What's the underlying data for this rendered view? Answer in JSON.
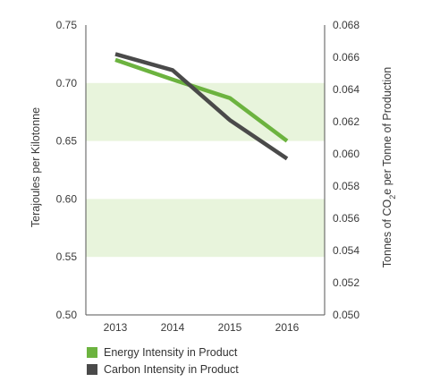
{
  "chart_data": {
    "type": "line",
    "x": [
      "2013",
      "2014",
      "2015",
      "2016"
    ],
    "series": [
      {
        "name": "Energy Intensity in Product",
        "axis": "left",
        "values": [
          0.72,
          0.703,
          0.687,
          0.65
        ],
        "color": "#6cb33f"
      },
      {
        "name": "Carbon Intensity in Product",
        "axis": "right",
        "values": [
          0.0662,
          0.0652,
          0.0621,
          0.0597
        ],
        "color": "#4a4a4a"
      }
    ],
    "ylabel": "Terajoules per Kilotonne",
    "ylim": [
      0.5,
      0.75
    ],
    "yticks": [
      "0.50",
      "0.55",
      "0.60",
      "0.65",
      "0.70",
      "0.75"
    ],
    "y2label_parts": [
      "Tonnes of CO",
      "2",
      "e per Tonne of Production"
    ],
    "y2lim": [
      0.05,
      0.068
    ],
    "y2ticks": [
      "0.050",
      "0.052",
      "0.054",
      "0.056",
      "0.058",
      "0.060",
      "0.062",
      "0.064",
      "0.066",
      "0.068"
    ],
    "band_color": "#e8f4dc",
    "legend": [
      {
        "label": "Energy Intensity in Product",
        "color": "#6cb33f"
      },
      {
        "label": "Carbon Intensity in Product",
        "color": "#4a4a4a"
      }
    ]
  }
}
